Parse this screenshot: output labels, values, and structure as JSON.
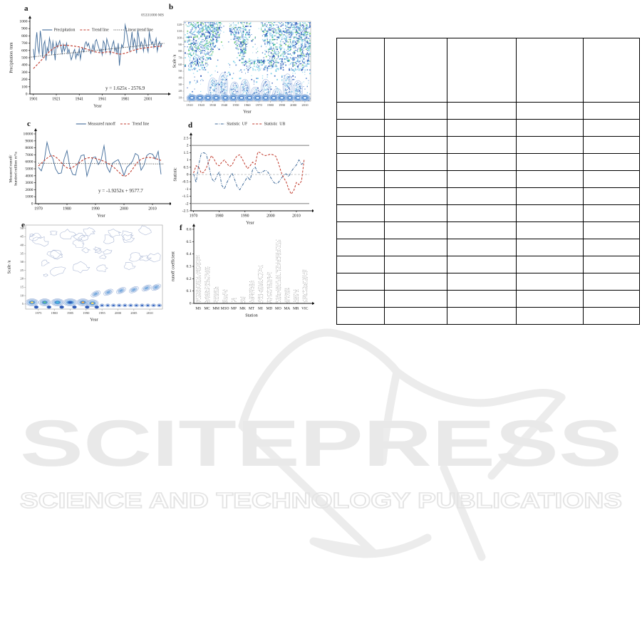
{
  "watermark": {
    "line1": "SCITEPRESS",
    "line2": "SCIENCE AND TECHNOLOGY PUBLICATIONS",
    "color": "#e9e9e9"
  },
  "table": {
    "column_count": 5,
    "data_row_count": 13,
    "cell_text": ""
  },
  "colors": {
    "series_blue": "#3f6a99",
    "series_red": "#c0392b",
    "black": "#222222",
    "bound_gray": "#8a8a8a"
  },
  "chart_data": [
    {
      "letter": "a",
      "type": "line",
      "station": "05331000 MS",
      "xlabel": "Year",
      "ylabel": "Precipitation /mm",
      "xlim": [
        1898,
        2016
      ],
      "ylim": [
        0,
        1000
      ],
      "ytick_step": 100,
      "xticks": [
        1901,
        1921,
        1941,
        1961,
        1981,
        2001
      ],
      "equation": "y = 1.625x - 2576.9",
      "legend": [
        {
          "label": "Precipitation",
          "style": "solid",
          "color": "#3f6a99"
        },
        {
          "label": "Trend line",
          "style": "dashed",
          "color": "#c0392b"
        },
        {
          "label": "Linear trend line",
          "style": "dotted",
          "color": "#222222"
        }
      ],
      "series": [
        {
          "style": "solid",
          "color": "#3f6a99",
          "width": 0.9,
          "x_start": 1901,
          "values": [
            620,
            470,
            700,
            850,
            640,
            560,
            870,
            760,
            500,
            680,
            730,
            460,
            640,
            580,
            770,
            690,
            540,
            720,
            620,
            465,
            710,
            640,
            690,
            735,
            645,
            560,
            680,
            590,
            640,
            700,
            560,
            615,
            540,
            470,
            520,
            580,
            615,
            490,
            560,
            530,
            625,
            480,
            590,
            635,
            580,
            690,
            720,
            660,
            700,
            640,
            560,
            610,
            680,
            590,
            725,
            750,
            690,
            640,
            580,
            620,
            540,
            730,
            695,
            580,
            760,
            700,
            650,
            550,
            620,
            685,
            730,
            590,
            640,
            560,
            700,
            390,
            560,
            680,
            640,
            720,
            950,
            870,
            780,
            680,
            590,
            725,
            855,
            640,
            760,
            700,
            560,
            870,
            780,
            640,
            720,
            680,
            590,
            760,
            700,
            640,
            580,
            850,
            760,
            690,
            720,
            640,
            700,
            765,
            590,
            680,
            720,
            650,
            700
          ]
        },
        {
          "style": "dashed",
          "color": "#c0392b",
          "width": 1.1,
          "smooth": true,
          "points": [
            [
              1901,
              350
            ],
            [
              1906,
              430
            ],
            [
              1911,
              520
            ],
            [
              1916,
              600
            ],
            [
              1921,
              655
            ],
            [
              1926,
              675
            ],
            [
              1931,
              670
            ],
            [
              1936,
              660
            ],
            [
              1941,
              650
            ],
            [
              1946,
              625
            ],
            [
              1951,
              600
            ],
            [
              1956,
              575
            ],
            [
              1961,
              565
            ],
            [
              1966,
              585
            ],
            [
              1971,
              570
            ],
            [
              1976,
              545
            ],
            [
              1981,
              560
            ],
            [
              1986,
              590
            ],
            [
              1991,
              615
            ],
            [
              1996,
              630
            ],
            [
              2001,
              640
            ],
            [
              2006,
              650
            ],
            [
              2013,
              660
            ]
          ]
        },
        {
          "style": "dotted",
          "color": "#222222",
          "width": 1.0,
          "linear": {
            "slope": 1.625,
            "intercept": -2576.9
          }
        }
      ]
    },
    {
      "letter": "b",
      "type": "contour",
      "xlabel": "Year",
      "ylabel": "Scale /a",
      "xlim": [
        1905,
        2015
      ],
      "ylim": [
        5,
        125
      ],
      "yticks": [
        10,
        20,
        30,
        40,
        50,
        60,
        70,
        80,
        90,
        100,
        110,
        120
      ],
      "xticks": [
        1910,
        1920,
        1930,
        1940,
        1950,
        1960,
        1970,
        1980,
        1990,
        2000,
        2010
      ],
      "field_scale_min": 52,
      "gaps": [
        0.325,
        0.565
      ],
      "bottom_blob_years": [
        1912,
        1919,
        1926,
        1933,
        1941,
        1948,
        1955,
        1962,
        1969,
        1976,
        1983,
        1990,
        1997,
        2004,
        2010
      ],
      "tongues": [
        [
          1930,
          40
        ],
        [
          1939,
          48
        ],
        [
          1949,
          34
        ],
        [
          1958,
          38
        ],
        [
          1967,
          26
        ],
        [
          1976,
          38
        ],
        [
          1986,
          24
        ],
        [
          1995,
          46
        ],
        [
          2004,
          36
        ]
      ]
    },
    {
      "letter": "c",
      "type": "line",
      "xlabel": "Year",
      "ylabel": "Measured runoff/",
      "ylabel2": "hundred million m³/a",
      "xlim": [
        1969,
        2015
      ],
      "ylim": [
        0,
        10000
      ],
      "ytick_step": 1000,
      "xticks": [
        1970,
        1980,
        1990,
        2000,
        2010
      ],
      "equation": "y = -1.9252x + 9577.7",
      "legend": [
        {
          "label": "Measured runoff",
          "style": "solid",
          "color": "#3f6a99"
        },
        {
          "label": "Trend line",
          "style": "dashed",
          "color": "#c0392b"
        }
      ],
      "series": [
        {
          "style": "solid",
          "color": "#3f6a99",
          "width": 0.9,
          "x_start": 1970,
          "values": [
            5200,
            4700,
            6100,
            8800,
            7200,
            6500,
            5000,
            4300,
            4400,
            6400,
            7600,
            5300,
            4200,
            4100,
            5900,
            6900,
            7000,
            3950,
            5300,
            6600,
            6700,
            5600,
            6300,
            8300,
            5300,
            4500,
            5800,
            6100,
            6300,
            5300,
            4050,
            5200,
            5600,
            6100,
            7200,
            6900,
            4800,
            5500,
            6900,
            7200,
            7100,
            6400,
            7500,
            4200
          ]
        },
        {
          "style": "dashed",
          "color": "#c0392b",
          "width": 1.1,
          "smooth": true,
          "points": [
            [
              1970,
              5400
            ],
            [
              1973,
              6600
            ],
            [
              1975,
              7000
            ],
            [
              1977,
              6400
            ],
            [
              1979,
              5400
            ],
            [
              1981,
              4900
            ],
            [
              1984,
              5800
            ],
            [
              1987,
              6650
            ],
            [
              1990,
              6500
            ],
            [
              1993,
              6100
            ],
            [
              1996,
              5400
            ],
            [
              1998,
              4600
            ],
            [
              2000,
              3800
            ],
            [
              2002,
              4300
            ],
            [
              2005,
              6200
            ],
            [
              2008,
              6700
            ],
            [
              2011,
              6500
            ],
            [
              2013,
              6200
            ]
          ]
        },
        {
          "style": "dotted",
          "color": "#222222",
          "width": 1.0,
          "linear": {
            "slope": -1.9252,
            "intercept": 9577.7
          }
        }
      ]
    },
    {
      "letter": "d",
      "type": "line",
      "xlabel": "Year",
      "ylabel": "Statistic",
      "xlim": [
        1969,
        2015
      ],
      "ylim": [
        -2.5,
        2.5
      ],
      "ytick_step": 0.5,
      "xticks": [
        1970,
        1980,
        1990,
        2000,
        2010
      ],
      "hlines": [
        {
          "y": 2,
          "style": "solid",
          "color": "#8a8a8a"
        },
        {
          "y": -2,
          "style": "solid",
          "color": "#8a8a8a"
        },
        {
          "y": 0,
          "style": "dashed",
          "color": "#b5b5b5"
        }
      ],
      "legend": [
        {
          "label": "Statistic  UF",
          "style": "dashdot",
          "color": "#3f6a99"
        },
        {
          "label": "Statistic  UB",
          "style": "dashed",
          "color": "#c0392b"
        }
      ],
      "series": [
        {
          "style": "dashdot",
          "color": "#3f6a99",
          "width": 1.0,
          "x_start": 1970,
          "values": [
            0.05,
            -0.55,
            0.65,
            1.45,
            1.5,
            1.4,
            0.55,
            -0.25,
            -0.5,
            -0.15,
            0.2,
            -0.75,
            -1.0,
            -0.55,
            -0.2,
            0.1,
            -0.35,
            -0.85,
            -1.05,
            -0.75,
            -0.45,
            -0.15,
            -0.4,
            0.35,
            0.5,
            0.15,
            0.1,
            0.2,
            0.3,
            0.15,
            -0.2,
            -0.5,
            -0.65,
            -0.55,
            -0.3,
            -0.05,
            0.05,
            -0.15,
            0.2,
            0.45,
            0.65,
            1.0,
            0.7,
            0.85
          ]
        },
        {
          "style": "dashed",
          "color": "#c0392b",
          "width": 1.0,
          "x_start": 1970,
          "values": [
            0.1,
            0.6,
            0.5,
            0.1,
            0.15,
            0.45,
            0.95,
            1.3,
            1.05,
            0.7,
            0.6,
            0.85,
            1.0,
            0.75,
            0.55,
            0.65,
            1.05,
            1.3,
            1.35,
            1.05,
            0.7,
            0.4,
            0.6,
            0.85,
            0.7,
            1.55,
            1.5,
            1.35,
            1.3,
            1.35,
            1.4,
            1.35,
            1.25,
            0.8,
            0.2,
            -0.2,
            -0.5,
            -1.0,
            -1.35,
            -1.1,
            -0.55,
            -0.7,
            -0.45,
            1.0
          ]
        }
      ]
    },
    {
      "letter": "e",
      "type": "contour",
      "xlabel": "Year",
      "ylabel": "Scale /a",
      "xlim": [
        1971,
        2014
      ],
      "ylim": [
        2,
        52
      ],
      "yticks": [
        5,
        10,
        15,
        20,
        25,
        30,
        35,
        40,
        45,
        50
      ],
      "xticks": [
        1975,
        1980,
        1985,
        1990,
        1995,
        2000,
        2005,
        2010
      ],
      "strong_blobs": [
        [
          1973,
          6
        ],
        [
          1977,
          6
        ],
        [
          1981,
          6
        ],
        [
          1985,
          6
        ],
        [
          1989,
          6
        ],
        [
          1992,
          5.5
        ]
      ],
      "small_dots_years": [
        1995,
        1996.8,
        1998.6,
        2000.4,
        2002.2,
        2004,
        2005.8,
        2007.6,
        2009.4,
        2011.2,
        2013
      ],
      "chain": [
        [
          1993,
          11
        ],
        [
          1997,
          12
        ],
        [
          2001,
          13
        ],
        [
          2005,
          13.5
        ],
        [
          2009,
          14.5
        ],
        [
          2012,
          15
        ]
      ],
      "outline_blob_count": 30
    },
    {
      "letter": "f",
      "type": "bar",
      "xlabel": "Station",
      "ylabel": "runoff coefficient",
      "ylim": [
        0,
        0.6
      ],
      "ytick_step": 0.1,
      "categories": [
        "MS",
        "MC",
        "MM",
        "MSO",
        "MP",
        "MK",
        "MT",
        "MI",
        "MD",
        "MO",
        "MA",
        "MR",
        "VIC"
      ],
      "values": [
        0.39,
        0.3,
        0.14,
        0.12,
        0.05,
        0.06,
        0.19,
        0.31,
        0.26,
        0.52,
        0.13,
        0.12,
        0.28
      ],
      "bar_color": "#8f8f8f"
    }
  ]
}
